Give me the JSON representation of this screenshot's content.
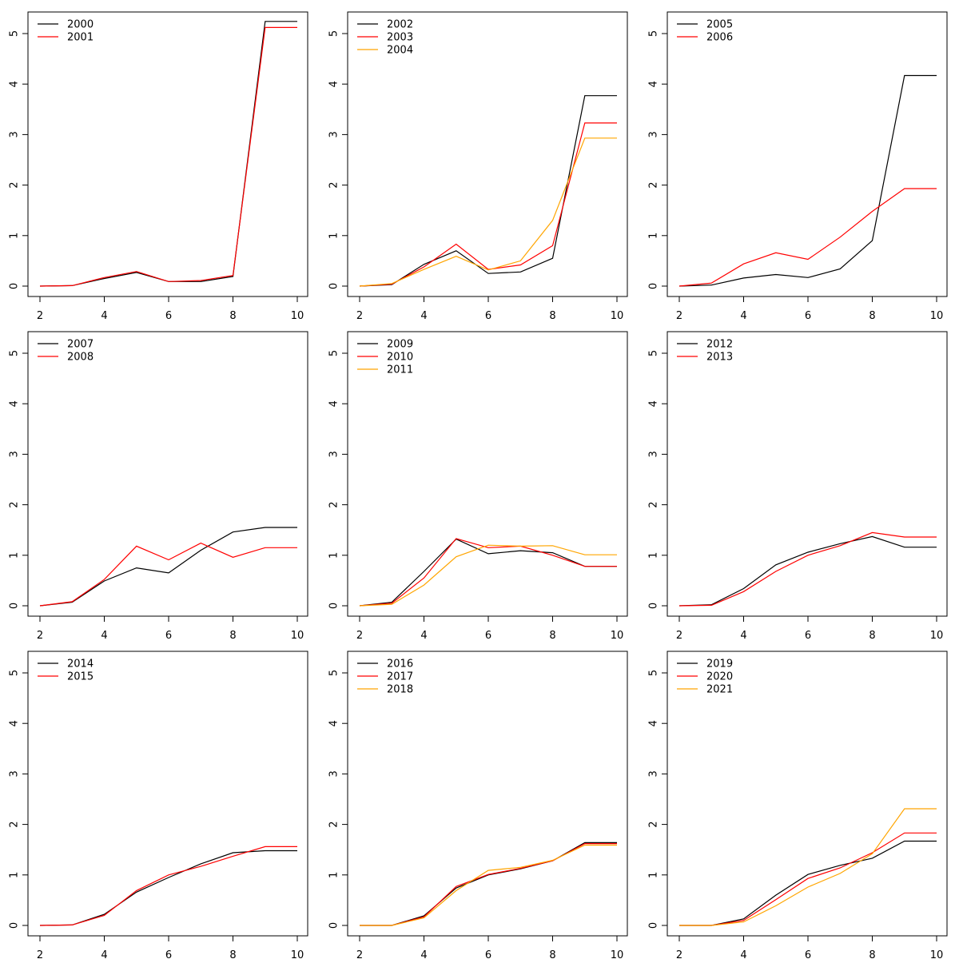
{
  "colors": {
    "black": "#000000",
    "red": "#ff0000",
    "orange": "#ffa500"
  },
  "chart_data": [
    {
      "type": "line",
      "x": [
        2,
        3,
        4,
        5,
        6,
        7,
        8,
        9,
        10
      ],
      "xlim": [
        2,
        10
      ],
      "ylim": [
        0,
        5.25
      ],
      "xticks": [
        2,
        4,
        6,
        8,
        10
      ],
      "yticks": [
        0,
        1,
        2,
        3,
        4,
        5
      ],
      "legend_position": "top-left",
      "series": [
        {
          "name": "2000",
          "color": "#000000",
          "values": [
            0,
            0.01,
            0.15,
            0.27,
            0.09,
            0.09,
            0.19,
            5.24,
            5.24
          ]
        },
        {
          "name": "2001",
          "color": "#ff0000",
          "values": [
            0,
            0.01,
            0.17,
            0.29,
            0.09,
            0.11,
            0.21,
            5.12,
            5.12
          ]
        }
      ]
    },
    {
      "type": "line",
      "x": [
        2,
        3,
        4,
        5,
        6,
        7,
        8,
        9,
        10
      ],
      "xlim": [
        2,
        10
      ],
      "ylim": [
        0,
        5.25
      ],
      "xticks": [
        2,
        4,
        6,
        8,
        10
      ],
      "yticks": [
        0,
        1,
        2,
        3,
        4,
        5
      ],
      "legend_position": "top-left",
      "series": [
        {
          "name": "2002",
          "color": "#000000",
          "values": [
            0,
            0.03,
            0.43,
            0.7,
            0.25,
            0.28,
            0.55,
            3.77,
            3.77
          ]
        },
        {
          "name": "2003",
          "color": "#ff0000",
          "values": [
            0,
            0.04,
            0.38,
            0.83,
            0.33,
            0.42,
            0.8,
            3.23,
            3.23
          ]
        },
        {
          "name": "2004",
          "color": "#ffa500",
          "values": [
            0,
            0.05,
            0.33,
            0.59,
            0.32,
            0.5,
            1.3,
            2.93,
            2.93
          ]
        }
      ]
    },
    {
      "type": "line",
      "x": [
        2,
        3,
        4,
        5,
        6,
        7,
        8,
        9,
        10
      ],
      "xlim": [
        2,
        10
      ],
      "ylim": [
        0,
        5.25
      ],
      "xticks": [
        2,
        4,
        6,
        8,
        10
      ],
      "yticks": [
        0,
        1,
        2,
        3,
        4,
        5
      ],
      "legend_position": "top-left",
      "series": [
        {
          "name": "2005",
          "color": "#000000",
          "values": [
            0,
            0.02,
            0.16,
            0.23,
            0.17,
            0.34,
            0.9,
            4.17,
            4.17
          ]
        },
        {
          "name": "2006",
          "color": "#ff0000",
          "values": [
            0,
            0.06,
            0.44,
            0.66,
            0.53,
            0.97,
            1.48,
            1.93,
            1.93
          ]
        }
      ]
    },
    {
      "type": "line",
      "x": [
        2,
        3,
        4,
        5,
        6,
        7,
        8,
        9,
        10
      ],
      "xlim": [
        2,
        10
      ],
      "ylim": [
        0,
        5.25
      ],
      "xticks": [
        2,
        4,
        6,
        8,
        10
      ],
      "yticks": [
        0,
        1,
        2,
        3,
        4,
        5
      ],
      "legend_position": "top-left",
      "series": [
        {
          "name": "2007",
          "color": "#000000",
          "values": [
            0,
            0.07,
            0.49,
            0.75,
            0.65,
            1.1,
            1.46,
            1.55,
            1.55
          ]
        },
        {
          "name": "2008",
          "color": "#ff0000",
          "values": [
            0,
            0.08,
            0.52,
            1.18,
            0.91,
            1.24,
            0.96,
            1.15,
            1.15
          ]
        }
      ]
    },
    {
      "type": "line",
      "x": [
        2,
        3,
        4,
        5,
        6,
        7,
        8,
        9,
        10
      ],
      "xlim": [
        2,
        10
      ],
      "ylim": [
        0,
        5.25
      ],
      "xticks": [
        2,
        4,
        6,
        8,
        10
      ],
      "yticks": [
        0,
        1,
        2,
        3,
        4,
        5
      ],
      "legend_position": "top-left",
      "series": [
        {
          "name": "2009",
          "color": "#000000",
          "values": [
            0,
            0.07,
            0.68,
            1.32,
            1.03,
            1.09,
            1.05,
            0.78,
            0.78
          ]
        },
        {
          "name": "2010",
          "color": "#ff0000",
          "values": [
            0,
            0.05,
            0.55,
            1.33,
            1.15,
            1.18,
            1.0,
            0.78,
            0.78
          ]
        },
        {
          "name": "2011",
          "color": "#ffa500",
          "values": [
            0,
            0.03,
            0.41,
            0.97,
            1.2,
            1.18,
            1.19,
            1.01,
            1.01
          ]
        }
      ]
    },
    {
      "type": "line",
      "x": [
        2,
        3,
        4,
        5,
        6,
        7,
        8,
        9,
        10
      ],
      "xlim": [
        2,
        10
      ],
      "ylim": [
        0,
        5.25
      ],
      "xticks": [
        2,
        4,
        6,
        8,
        10
      ],
      "yticks": [
        0,
        1,
        2,
        3,
        4,
        5
      ],
      "legend_position": "top-left",
      "series": [
        {
          "name": "2012",
          "color": "#000000",
          "values": [
            0,
            0.02,
            0.34,
            0.81,
            1.06,
            1.23,
            1.37,
            1.16,
            1.16
          ]
        },
        {
          "name": "2013",
          "color": "#ff0000",
          "values": [
            0,
            0.01,
            0.28,
            0.68,
            1.0,
            1.19,
            1.45,
            1.36,
            1.36
          ]
        }
      ]
    },
    {
      "type": "line",
      "x": [
        2,
        3,
        4,
        5,
        6,
        7,
        8,
        9,
        10
      ],
      "xlim": [
        2,
        10
      ],
      "ylim": [
        0,
        5.25
      ],
      "xticks": [
        2,
        4,
        6,
        8,
        10
      ],
      "yticks": [
        0,
        1,
        2,
        3,
        4,
        5
      ],
      "legend_position": "top-left",
      "series": [
        {
          "name": "2014",
          "color": "#000000",
          "values": [
            0,
            0.01,
            0.22,
            0.66,
            0.95,
            1.22,
            1.44,
            1.48,
            1.48
          ]
        },
        {
          "name": "2015",
          "color": "#ff0000",
          "values": [
            0,
            0.01,
            0.2,
            0.69,
            1.0,
            1.17,
            1.37,
            1.56,
            1.56
          ]
        }
      ]
    },
    {
      "type": "line",
      "x": [
        2,
        3,
        4,
        5,
        6,
        7,
        8,
        9,
        10
      ],
      "xlim": [
        2,
        10
      ],
      "ylim": [
        0,
        5.25
      ],
      "xticks": [
        2,
        4,
        6,
        8,
        10
      ],
      "yticks": [
        0,
        1,
        2,
        3,
        4,
        5
      ],
      "legend_position": "top-left",
      "series": [
        {
          "name": "2016",
          "color": "#000000",
          "values": [
            0,
            0.0,
            0.19,
            0.74,
            1.0,
            1.12,
            1.28,
            1.64,
            1.64
          ]
        },
        {
          "name": "2017",
          "color": "#ff0000",
          "values": [
            0,
            0.0,
            0.17,
            0.77,
            1.01,
            1.13,
            1.28,
            1.62,
            1.62
          ]
        },
        {
          "name": "2018",
          "color": "#ffa500",
          "values": [
            0,
            0.0,
            0.15,
            0.69,
            1.09,
            1.15,
            1.29,
            1.59,
            1.59
          ]
        }
      ]
    },
    {
      "type": "line",
      "x": [
        2,
        3,
        4,
        5,
        6,
        7,
        8,
        9,
        10
      ],
      "xlim": [
        2,
        10
      ],
      "ylim": [
        0,
        5.25
      ],
      "xticks": [
        2,
        4,
        6,
        8,
        10
      ],
      "yticks": [
        0,
        1,
        2,
        3,
        4,
        5
      ],
      "legend_position": "top-left",
      "series": [
        {
          "name": "2019",
          "color": "#000000",
          "values": [
            0,
            0.0,
            0.13,
            0.6,
            1.01,
            1.19,
            1.33,
            1.67,
            1.67
          ]
        },
        {
          "name": "2020",
          "color": "#ff0000",
          "values": [
            0,
            0.0,
            0.1,
            0.51,
            0.93,
            1.14,
            1.44,
            1.83,
            1.83
          ]
        },
        {
          "name": "2021",
          "color": "#ffa500",
          "values": [
            0,
            0.0,
            0.07,
            0.39,
            0.76,
            1.03,
            1.42,
            2.31,
            2.31
          ]
        }
      ]
    }
  ]
}
